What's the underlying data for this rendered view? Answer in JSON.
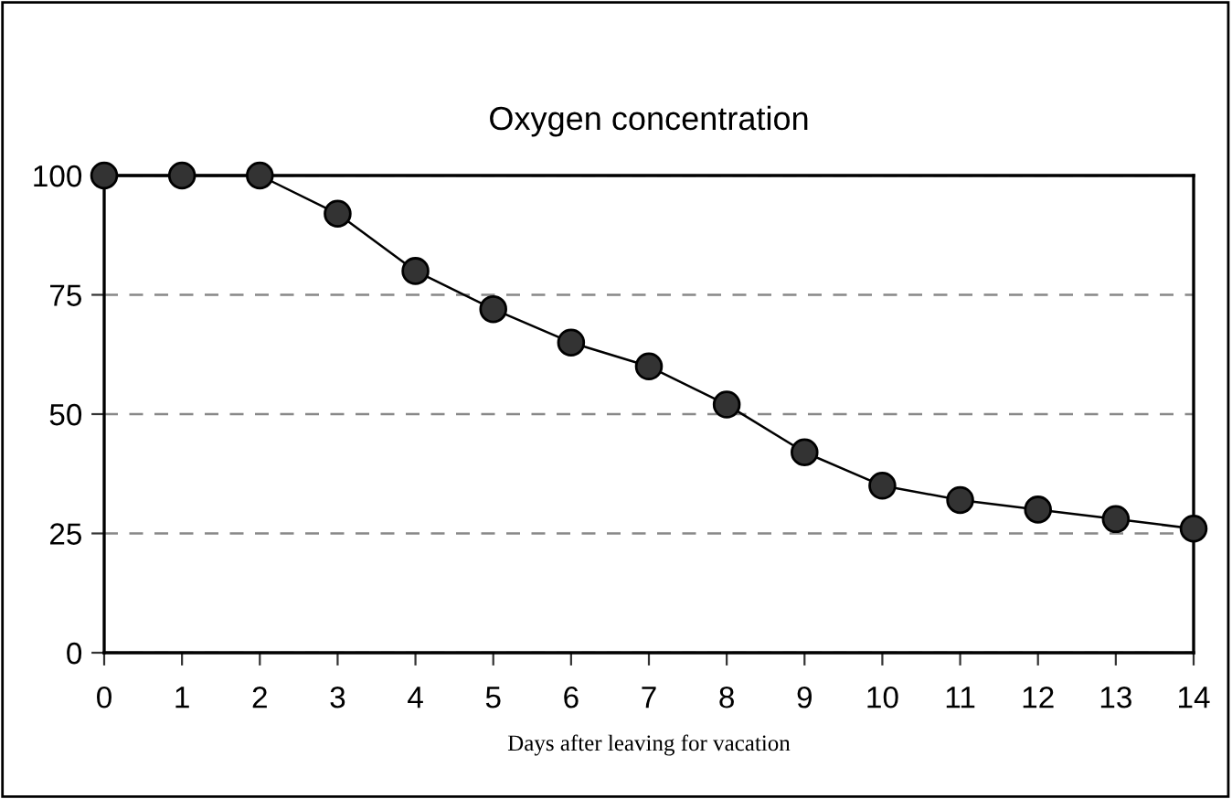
{
  "chart_data": {
    "type": "line",
    "title": "Oxygen concentration",
    "xlabel": "Days after leaving for vacation",
    "x": [
      0,
      1,
      2,
      3,
      4,
      5,
      6,
      7,
      8,
      9,
      10,
      11,
      12,
      13,
      14
    ],
    "series": [
      {
        "color": "#333333",
        "values": [
          100,
          100,
          100,
          92,
          80,
          72,
          65,
          60,
          52,
          42,
          35,
          32,
          30,
          28,
          26
        ]
      }
    ],
    "xlim": [
      0,
      14
    ],
    "xticks": [
      0,
      1,
      2,
      3,
      4,
      5,
      6,
      7,
      8,
      9,
      10,
      11,
      12,
      13,
      14
    ],
    "ylim": [
      0,
      100
    ],
    "yticks": [
      0,
      25,
      50,
      75,
      100
    ],
    "grid": "y",
    "marker": "circle",
    "line_style": "solid"
  }
}
